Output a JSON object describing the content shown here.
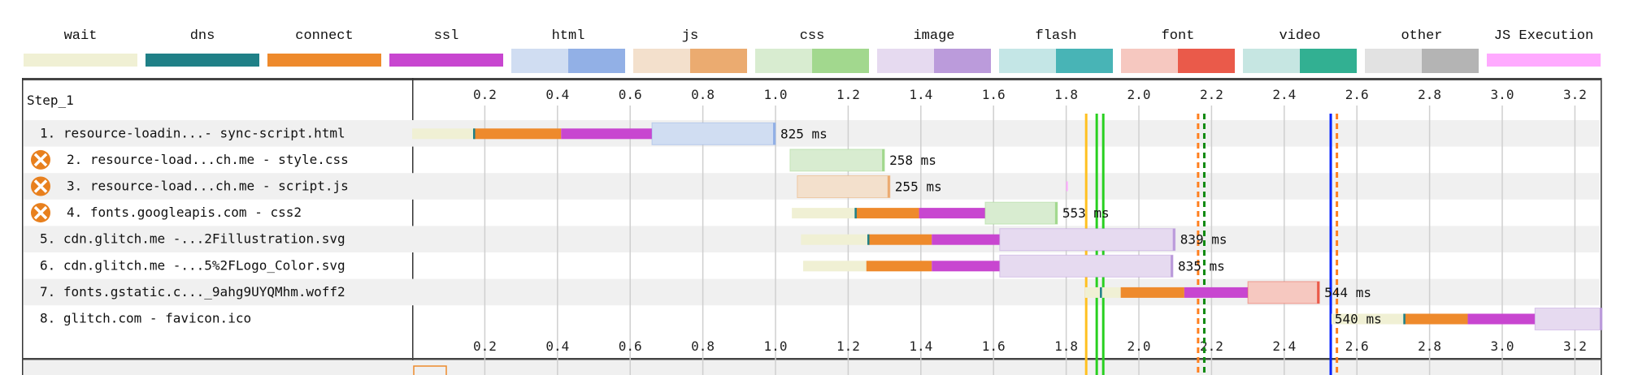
{
  "legend": [
    {
      "label": "wait",
      "color": "#f0f0d4",
      "dark": null
    },
    {
      "label": "dns",
      "color": "#1f8087",
      "dark": null
    },
    {
      "label": "connect",
      "color": "#ee8a2c",
      "dark": null
    },
    {
      "label": "ssl",
      "color": "#c846d0",
      "dark": null
    },
    {
      "label": "html",
      "color": "#d0ddf2",
      "dark": "#92b0e6"
    },
    {
      "label": "js",
      "color": "#f3e0cc",
      "dark": "#ebab70"
    },
    {
      "label": "css",
      "color": "#d8ecd0",
      "dark": "#a2d88e"
    },
    {
      "label": "image",
      "color": "#e6daf0",
      "dark": "#bb9bdb"
    },
    {
      "label": "flash",
      "color": "#c4e6e6",
      "dark": "#48b4b6"
    },
    {
      "label": "font",
      "color": "#f6c8c0",
      "dark": "#ea5a4a"
    },
    {
      "label": "video",
      "color": "#c6e6e2",
      "dark": "#32b092"
    },
    {
      "label": "other",
      "color": "#e2e2e2",
      "dark": "#b4b4b4"
    },
    {
      "label": "JS Execution",
      "color": "#ffaaff",
      "dark": null
    }
  ],
  "step_label": "Step_1",
  "axis": {
    "min": 0,
    "max": 3.27,
    "ticks": [
      "0.2",
      "0.4",
      "0.6",
      "0.8",
      "1.0",
      "1.2",
      "1.4",
      "1.6",
      "1.8",
      "2.0",
      "2.2",
      "2.4",
      "2.6",
      "2.8",
      "3.0",
      "3.2"
    ]
  },
  "requests": [
    {
      "label": "1. resource-loadin...- sync-script.html",
      "warning": false,
      "duration": "825 ms",
      "type": "html",
      "wait": [
        0.0,
        0.17
      ],
      "connect": [
        0.17,
        0.41
      ],
      "ssl": [
        0.41,
        0.66
      ],
      "content": [
        0.66,
        1.0
      ],
      "dns_mark": 0.17
    },
    {
      "label": "2. resource-load...ch.me - style.css",
      "warning": true,
      "duration": "258 ms",
      "type": "css",
      "content": [
        1.04,
        1.3
      ]
    },
    {
      "label": "3. resource-load...ch.me - script.js",
      "warning": true,
      "duration": "255 ms",
      "type": "js",
      "content": [
        1.06,
        1.315
      ],
      "js_exec": 1.8
    },
    {
      "label": "4. fonts.googleapis.com - css2",
      "warning": true,
      "duration": "553 ms",
      "type": "css",
      "wait": [
        1.045,
        1.22
      ],
      "connect": [
        1.22,
        1.395
      ],
      "ssl": [
        1.395,
        1.577
      ],
      "content": [
        1.577,
        1.776
      ],
      "dns_mark": 1.22
    },
    {
      "label": "5. cdn.glitch.me -...2Fillustration.svg",
      "warning": false,
      "duration": "839 ms",
      "type": "image",
      "wait": [
        1.07,
        1.255
      ],
      "connect": [
        1.255,
        1.43
      ],
      "ssl": [
        1.43,
        1.617
      ],
      "content": [
        1.617,
        2.1
      ],
      "dns_mark": 1.255
    },
    {
      "label": "6. cdn.glitch.me -...5%2FLogo_Color.svg",
      "warning": false,
      "duration": "835 ms",
      "type": "image",
      "wait": [
        1.076,
        1.25
      ],
      "connect": [
        1.25,
        1.43
      ],
      "ssl": [
        1.43,
        1.617
      ],
      "content": [
        1.617,
        2.094
      ]
    },
    {
      "label": "7. fonts.gstatic.c..._9ahg9UYQMhm.woff2",
      "warning": false,
      "duration": "544 ms",
      "type": "font",
      "wait": [
        1.852,
        1.95
      ],
      "connect": [
        1.95,
        2.125
      ],
      "ssl": [
        2.125,
        2.3
      ],
      "content": [
        2.3,
        2.497
      ],
      "dns_mark": 1.895
    },
    {
      "label": "8. glitch.com - favicon.ico",
      "warning": false,
      "duration": "540 ms",
      "type": "image",
      "label_inside": true,
      "wait": [
        2.53,
        2.73
      ],
      "connect": [
        2.73,
        2.905
      ],
      "ssl": [
        2.905,
        3.09
      ],
      "content": [
        3.09,
        3.275
      ],
      "dns_mark": 2.73
    }
  ],
  "markers": [
    {
      "time": 1.855,
      "color": "#ffc020",
      "style": "solid"
    },
    {
      "time": 1.884,
      "color": "#28d020",
      "style": "solid"
    },
    {
      "time": 1.902,
      "color": "#28d020",
      "style": "solid"
    },
    {
      "time": 2.163,
      "color": "#ff8020",
      "style": "dashed"
    },
    {
      "time": 2.18,
      "color": "#108a10",
      "style": "dashed"
    },
    {
      "time": 2.528,
      "color": "#0020ff",
      "style": "solid"
    },
    {
      "time": 2.545,
      "color": "#ff8020",
      "style": "dashed"
    }
  ]
}
